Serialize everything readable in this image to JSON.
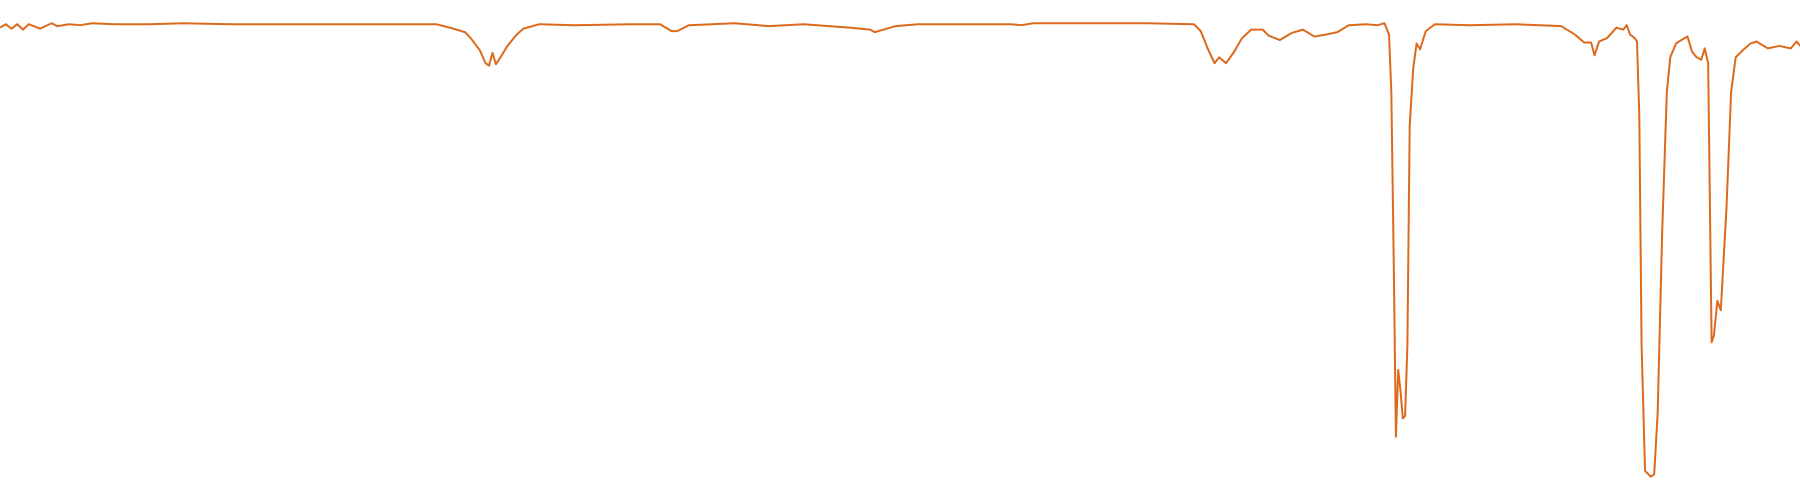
{
  "chart_data": {
    "type": "line",
    "color": "#dc6a1c",
    "xlim": [
      0,
      1568
    ],
    "ylim": [
      0,
      100
    ],
    "x": [
      0,
      5,
      10,
      15,
      20,
      25,
      35,
      45,
      50,
      60,
      70,
      80,
      100,
      130,
      160,
      200,
      250,
      300,
      350,
      380,
      395,
      405,
      410,
      418,
      423,
      426,
      429,
      432,
      436,
      442,
      450,
      456,
      470,
      500,
      550,
      575,
      585,
      590,
      600,
      640,
      670,
      700,
      740,
      758,
      762,
      780,
      800,
      880,
      890,
      900,
      1000,
      1040,
      1046,
      1052,
      1058,
      1062,
      1068,
      1075,
      1082,
      1090,
      1100,
      1105,
      1115,
      1125,
      1135,
      1145,
      1155,
      1165,
      1175,
      1190,
      1200,
      1206,
      1210,
      1212,
      1214,
      1216,
      1218,
      1220,
      1222,
      1224,
      1226,
      1228,
      1231,
      1234,
      1237,
      1242,
      1250,
      1280,
      1320,
      1360,
      1372,
      1380,
      1386,
      1389,
      1393,
      1400,
      1408,
      1414,
      1417,
      1420,
      1424,
      1426,
      1428,
      1430,
      1433,
      1436,
      1438,
      1441,
      1444,
      1448,
      1452,
      1455,
      1460,
      1466,
      1470,
      1474,
      1478,
      1482,
      1485,
      1488,
      1491,
      1493,
      1496,
      1499,
      1504,
      1508,
      1512,
      1518,
      1525,
      1530,
      1540,
      1550,
      1560,
      1565,
      1568
    ],
    "values": [
      94.4,
      95.1,
      94.2,
      95.1,
      94.0,
      95.1,
      94.2,
      95.3,
      94.7,
      95.1,
      94.9,
      95.3,
      95.1,
      95.1,
      95.3,
      95.1,
      95.1,
      95.1,
      95.1,
      95.1,
      94.2,
      93.5,
      92.3,
      89.8,
      87.2,
      86.7,
      89.3,
      87.0,
      88.4,
      90.7,
      93.0,
      94.2,
      95.1,
      94.9,
      95.1,
      95.1,
      93.7,
      93.7,
      94.9,
      95.3,
      94.7,
      95.1,
      94.4,
      94.0,
      93.5,
      94.7,
      95.1,
      95.1,
      94.9,
      95.3,
      95.3,
      95.1,
      93.7,
      90.2,
      87.2,
      88.4,
      87.2,
      89.5,
      92.3,
      94.0,
      94.0,
      92.8,
      91.9,
      93.3,
      94.0,
      92.6,
      93.0,
      93.5,
      94.9,
      95.1,
      94.9,
      95.3,
      93.0,
      81.4,
      48.8,
      11.6,
      25.1,
      20.9,
      15.3,
      15.8,
      30.2,
      74.4,
      86.0,
      91.2,
      90.0,
      93.7,
      95.1,
      94.9,
      95.1,
      94.7,
      93.0,
      91.4,
      91.4,
      88.8,
      91.6,
      92.3,
      94.4,
      94.0,
      94.9,
      93.0,
      92.3,
      91.6,
      76.7,
      30.2,
      4.7,
      4.0,
      3.5,
      4.0,
      16.3,
      53.5,
      81.4,
      88.4,
      91.2,
      92.1,
      92.6,
      89.5,
      88.4,
      87.9,
      90.2,
      87.2,
      30.7,
      32.1,
      39.1,
      37.2,
      58.1,
      81.4,
      88.4,
      89.8,
      91.2,
      91.6,
      90.2,
      90.7,
      90.2,
      91.6,
      90.7
    ]
  }
}
